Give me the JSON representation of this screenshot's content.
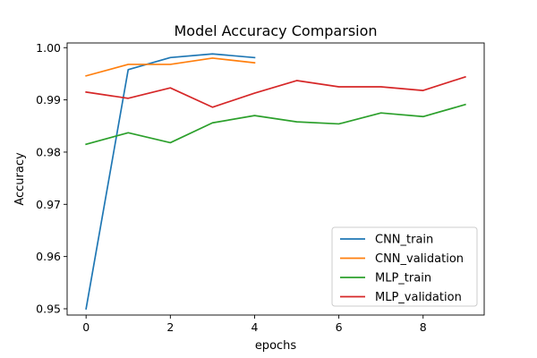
{
  "chart_data": {
    "type": "line",
    "title": "Model Accuracy Comparsion",
    "xlabel": "epochs",
    "ylabel": "Accuracy",
    "xlim": [
      -0.45,
      9.45
    ],
    "ylim": [
      0.9488,
      1.0009
    ],
    "xticks": [
      0,
      2,
      4,
      6,
      8
    ],
    "yticks": [
      0.95,
      0.96,
      0.97,
      0.98,
      0.99,
      1.0
    ],
    "ytick_labels": [
      "0.95",
      "0.96",
      "0.97",
      "0.98",
      "0.99",
      "1.00"
    ],
    "grid": false,
    "legend_position": "lower-right",
    "series": [
      {
        "name": "CNN_train",
        "color": "#1f77b4",
        "x": [
          0,
          1,
          2,
          3,
          4
        ],
        "values": [
          0.95,
          0.9958,
          0.9981,
          0.9988,
          0.9981
        ]
      },
      {
        "name": "CNN_validation",
        "color": "#ff7f0e",
        "x": [
          0,
          1,
          2,
          3,
          4
        ],
        "values": [
          0.9946,
          0.9968,
          0.9968,
          0.998,
          0.9971
        ]
      },
      {
        "name": "MLP_train",
        "color": "#2ca02c",
        "x": [
          0,
          1,
          2,
          3,
          4,
          5,
          6,
          7,
          8,
          9
        ],
        "values": [
          0.9815,
          0.9837,
          0.9818,
          0.9856,
          0.987,
          0.9858,
          0.9854,
          0.9875,
          0.9868,
          0.9891
        ]
      },
      {
        "name": "MLP_validation",
        "color": "#d62728",
        "x": [
          0,
          1,
          2,
          3,
          4,
          5,
          6,
          7,
          8,
          9
        ],
        "values": [
          0.9915,
          0.9903,
          0.9923,
          0.9886,
          0.9913,
          0.9937,
          0.9925,
          0.9925,
          0.9918,
          0.9944
        ]
      }
    ]
  }
}
